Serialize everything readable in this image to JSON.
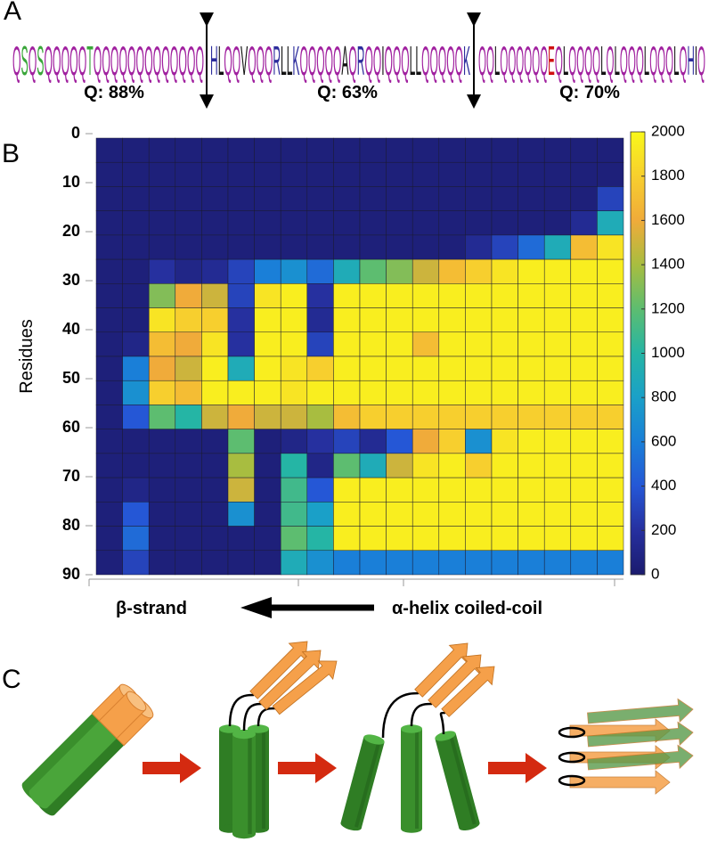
{
  "panel_a": {
    "letter": "A",
    "segments": [
      {
        "sequence": "QSQSQQQQQTQQQQQQQQQQQQQ",
        "label": "Q: 88%"
      },
      {
        "sequence": "HLQQVQQQRLLKQQQQQAQRQQIQQQLLQQQQQK",
        "label": "Q: 63%"
      },
      {
        "sequence": "QQLQQQQQQEQLQQQQLQLQQQLQQQLQHIQ",
        "label": "Q: 70%"
      }
    ],
    "residue_colors": {
      "Q": "#a0209f",
      "S": "#3aa63a",
      "T": "#3aa63a",
      "H": "#2c2c9c",
      "R": "#2c2c9c",
      "K": "#2c2c9c",
      "E": "#d01010",
      "L": "#111111",
      "V": "#111111",
      "A": "#111111",
      "I": "#111111"
    }
  },
  "chart_data": {
    "type": "heatmap",
    "panel_letter": "B",
    "ylabel": "Residues",
    "x_annotation_left": "β-strand",
    "x_annotation_right": "α-helix coiled-coil",
    "ylim": [
      0,
      90
    ],
    "yticks": [
      0,
      10,
      20,
      30,
      40,
      50,
      60,
      70,
      80,
      90
    ],
    "zlim": [
      0,
      2000
    ],
    "zticks": [
      0,
      200,
      400,
      600,
      800,
      1000,
      1200,
      1400,
      1600,
      1800,
      2000
    ],
    "colormap": [
      "#1b1b6e",
      "#26309f",
      "#2557d6",
      "#1a7fd8",
      "#1aa0c8",
      "#25b5a5",
      "#5dbd70",
      "#a8bd40",
      "#f0ab3a",
      "#f7cf2e",
      "#f9f81a"
    ],
    "values": [
      [
        50,
        50,
        50,
        50,
        50,
        50,
        50,
        50,
        50,
        50,
        50,
        50,
        50,
        50,
        50,
        50,
        50,
        50,
        50,
        50
      ],
      [
        50,
        50,
        50,
        50,
        50,
        50,
        50,
        50,
        50,
        50,
        50,
        50,
        50,
        50,
        50,
        50,
        50,
        50,
        50,
        50
      ],
      [
        50,
        50,
        50,
        50,
        50,
        50,
        50,
        50,
        50,
        50,
        50,
        50,
        50,
        50,
        50,
        50,
        50,
        50,
        50,
        300
      ],
      [
        50,
        50,
        50,
        50,
        50,
        50,
        50,
        50,
        50,
        50,
        50,
        50,
        50,
        50,
        50,
        50,
        50,
        50,
        150,
        900
      ],
      [
        50,
        50,
        50,
        50,
        50,
        50,
        50,
        50,
        50,
        50,
        50,
        50,
        50,
        50,
        150,
        300,
        500,
        900,
        1700,
        1900
      ],
      [
        50,
        50,
        200,
        100,
        150,
        300,
        600,
        700,
        500,
        900,
        1200,
        1300,
        1500,
        1700,
        1800,
        1900,
        1950,
        1950,
        1950,
        1950
      ],
      [
        50,
        50,
        1300,
        1600,
        1500,
        300,
        1900,
        1950,
        200,
        1950,
        1950,
        1950,
        1950,
        1950,
        1950,
        1950,
        1950,
        1950,
        1950,
        1950
      ],
      [
        50,
        50,
        1900,
        1800,
        1800,
        200,
        1950,
        1950,
        150,
        1950,
        1950,
        1950,
        1950,
        1950,
        1950,
        1950,
        1950,
        1950,
        1950,
        1950
      ],
      [
        50,
        100,
        1700,
        1600,
        1900,
        200,
        1950,
        1950,
        300,
        1950,
        1950,
        1950,
        1700,
        1950,
        1950,
        1950,
        1950,
        1950,
        1950,
        1950
      ],
      [
        50,
        600,
        1600,
        1500,
        1950,
        900,
        1950,
        1900,
        1800,
        1950,
        1950,
        1950,
        1950,
        1950,
        1950,
        1950,
        1950,
        1950,
        1950,
        1950
      ],
      [
        50,
        700,
        1800,
        1700,
        1950,
        1950,
        1950,
        1900,
        1950,
        1950,
        1950,
        1950,
        1950,
        1950,
        1950,
        1950,
        1950,
        1950,
        1950,
        1950
      ],
      [
        50,
        400,
        1200,
        1000,
        1500,
        1600,
        1500,
        1500,
        1400,
        1700,
        1800,
        1800,
        1800,
        1800,
        1800,
        1800,
        1800,
        1800,
        1800,
        1800
      ],
      [
        50,
        50,
        50,
        50,
        50,
        1200,
        50,
        100,
        200,
        300,
        150,
        400,
        1600,
        1800,
        700,
        1900,
        1950,
        1950,
        1950,
        1950
      ],
      [
        50,
        50,
        50,
        50,
        50,
        1400,
        50,
        1000,
        100,
        1200,
        900,
        1500,
        1900,
        1950,
        1800,
        1950,
        1950,
        1950,
        1950,
        1950
      ],
      [
        50,
        100,
        50,
        50,
        50,
        1500,
        50,
        1100,
        400,
        1950,
        1950,
        1950,
        1950,
        1950,
        1950,
        1950,
        1950,
        1950,
        1950,
        1950
      ],
      [
        50,
        400,
        50,
        50,
        50,
        700,
        50,
        1100,
        800,
        1950,
        1950,
        1950,
        1950,
        1950,
        1950,
        1950,
        1950,
        1950,
        1950,
        1950
      ],
      [
        50,
        500,
        50,
        50,
        50,
        50,
        50,
        1200,
        1000,
        1950,
        1950,
        1950,
        1950,
        1950,
        1950,
        1950,
        1950,
        1950,
        1950,
        1950
      ],
      [
        50,
        300,
        50,
        50,
        50,
        50,
        50,
        900,
        700,
        600,
        600,
        600,
        600,
        600,
        600,
        600,
        600,
        600,
        600,
        600
      ]
    ]
  },
  "panel_c": {
    "letter": "C"
  }
}
